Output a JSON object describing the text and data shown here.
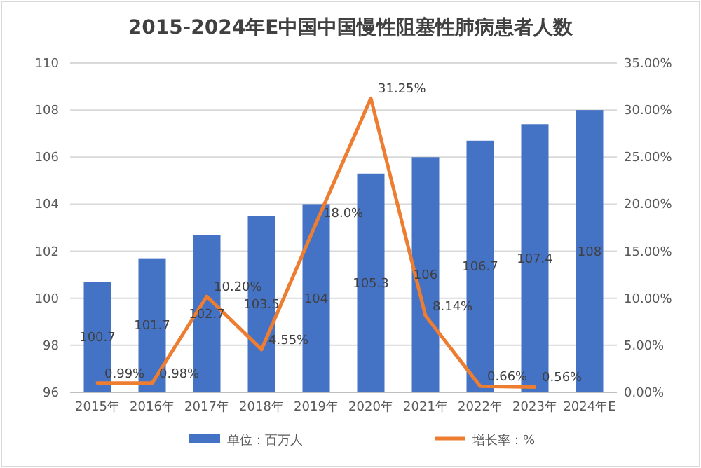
{
  "chart_data": {
    "type": "bar",
    "title": "2015-2024年E中国中国慢性阻塞性肺病患者人数",
    "categories": [
      "2015年",
      "2016年",
      "2017年",
      "2018年",
      "2019年",
      "2020年",
      "2021年",
      "2022年",
      "2023年",
      "2024年E"
    ],
    "series": [
      {
        "name": "单位：百万人",
        "color": "#4472c4",
        "values": [
          100.7,
          101.7,
          102.7,
          103.5,
          104,
          105.3,
          106,
          106.7,
          107.4,
          108
        ],
        "value_labels": [
          "100.7",
          "101.7",
          "102.7",
          "103.5",
          "104",
          "105.3",
          "106",
          "106.7",
          "107.4",
          "108"
        ]
      },
      {
        "name": "增长率：%",
        "type": "line",
        "axis": "y2",
        "color": "#ed7d31",
        "values": [
          0.99,
          0.98,
          10.2,
          4.55,
          18,
          31.25,
          8.14,
          0.66,
          0.56,
          null
        ],
        "value_labels": [
          "0.99%",
          "0.98%",
          "10.20%",
          "4.55%",
          "18.0%",
          "31.25%",
          "8.14%",
          "0.66%",
          "0.56%",
          null
        ]
      }
    ],
    "ylim": [
      96,
      110
    ],
    "yticks": [
      96,
      98,
      100,
      102,
      104,
      106,
      108,
      110
    ],
    "y2lim": [
      0,
      35
    ],
    "y2ticks": [
      {
        "value": 0,
        "label": "0.00%"
      },
      {
        "value": 5,
        "label": "5.00%"
      },
      {
        "value": 10,
        "label": "10.00%"
      },
      {
        "value": 15,
        "label": "15.00%"
      },
      {
        "value": 20,
        "label": "20.00%"
      },
      {
        "value": 25,
        "label": "25.00%"
      },
      {
        "value": 30,
        "label": "30.00%"
      },
      {
        "value": 35,
        "label": "35.00%"
      }
    ],
    "grid": "y",
    "legend": "bottom",
    "marker": "none"
  }
}
